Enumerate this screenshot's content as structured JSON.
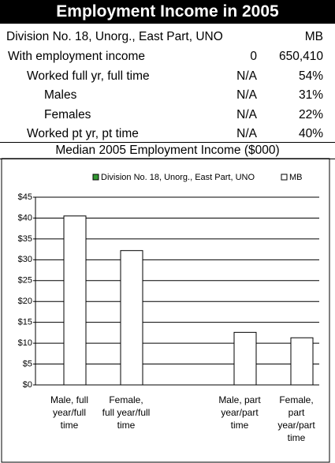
{
  "header": {
    "title": "Employment Income in 2005"
  },
  "table": {
    "columns": [
      "Division No. 18, Unorg., East Part, UNO",
      "MB"
    ],
    "rows": [
      [
        "With employment income",
        "0",
        "650,410"
      ],
      [
        "Worked full yr, full time",
        "N/A",
        "54%"
      ],
      [
        "Males",
        "N/A",
        "31%"
      ],
      [
        "Females",
        "N/A",
        "22%"
      ],
      [
        "Worked pt yr, pt time",
        "N/A",
        "40%"
      ]
    ]
  },
  "chart_data": {
    "type": "bar",
    "title": "Median 2005 Employment Income ($000)",
    "categories": [
      "Male, full year/full time",
      "Female, full year/full time",
      null,
      "Male, part year/part time",
      "Female, part year/part time"
    ],
    "series": [
      {
        "name": "Division No. 18, Unorg., East Part, UNO",
        "color": "#339933",
        "values": [
          null,
          null,
          null,
          null,
          null
        ]
      },
      {
        "name": "MB",
        "color": "#ffffff",
        "values": [
          40.5,
          32.2,
          null,
          12.6,
          11.3
        ]
      }
    ],
    "ylim": [
      0,
      45
    ],
    "yticks": [
      {
        "value": 0,
        "label": "$0"
      },
      {
        "value": 5,
        "label": "$5"
      },
      {
        "value": 10,
        "label": "$10"
      },
      {
        "value": 15,
        "label": "$15"
      },
      {
        "value": 20,
        "label": "$20"
      },
      {
        "value": 25,
        "label": "$25"
      },
      {
        "value": 30,
        "label": "$30"
      },
      {
        "value": 35,
        "label": "$35"
      },
      {
        "value": 40,
        "label": "$40"
      },
      {
        "value": 45,
        "label": "$45"
      }
    ],
    "grid": true,
    "legend": "top"
  }
}
